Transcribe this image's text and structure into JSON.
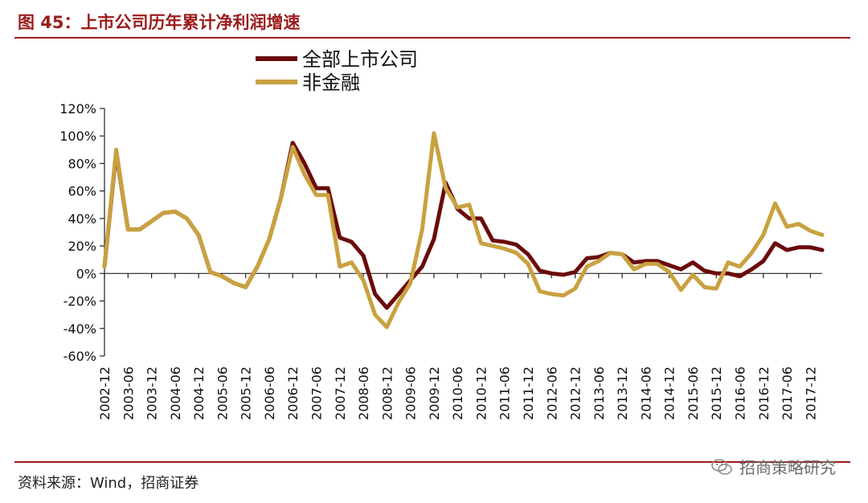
{
  "title": "图 45：上市公司历年累计净利润增速",
  "source": "资料来源：Wind，招商证券",
  "watermark": "招商策略研究",
  "colors": {
    "accent": "#9c1c1c",
    "series_all": "#6b0a0a",
    "series_nonfin": "#c9a13f"
  },
  "chart_data": {
    "type": "line",
    "title": "",
    "xlabel": "",
    "ylabel": "",
    "ylim": [
      -60,
      120
    ],
    "yticks": [
      -60,
      -40,
      -20,
      0,
      20,
      40,
      60,
      80,
      100,
      120
    ],
    "ytick_labels": [
      "-60%",
      "-40%",
      "-20%",
      "0%",
      "20%",
      "40%",
      "60%",
      "80%",
      "100%",
      "120%"
    ],
    "grid": false,
    "legend": "top-left",
    "x_labels": [
      "2002-12",
      "2003-06",
      "2003-12",
      "2004-06",
      "2004-12",
      "2005-06",
      "2005-12",
      "2006-06",
      "2006-12",
      "2007-06",
      "2007-12",
      "2008-06",
      "2008-12",
      "2009-06",
      "2009-12",
      "2010-06",
      "2010-12",
      "2011-06",
      "2011-12",
      "2012-06",
      "2012-12",
      "2013-06",
      "2013-12",
      "2014-06",
      "2014-12",
      "2015-06",
      "2015-12",
      "2016-06",
      "2016-12",
      "2017-06",
      "2017-12"
    ],
    "x": [
      "2002-12",
      "2003-03",
      "2003-06",
      "2003-09",
      "2003-12",
      "2004-03",
      "2004-06",
      "2004-09",
      "2004-12",
      "2005-03",
      "2005-06",
      "2005-09",
      "2005-12",
      "2006-03",
      "2006-06",
      "2006-09",
      "2006-12",
      "2007-03",
      "2007-06",
      "2007-09",
      "2007-12",
      "2008-03",
      "2008-06",
      "2008-09",
      "2008-12",
      "2009-03",
      "2009-06",
      "2009-09",
      "2009-12",
      "2010-03",
      "2010-06",
      "2010-09",
      "2010-12",
      "2011-03",
      "2011-06",
      "2011-09",
      "2011-12",
      "2012-03",
      "2012-06",
      "2012-09",
      "2012-12",
      "2013-03",
      "2013-06",
      "2013-09",
      "2013-12",
      "2014-03",
      "2014-06",
      "2014-09",
      "2014-12",
      "2015-03",
      "2015-06",
      "2015-09",
      "2015-12",
      "2016-03",
      "2016-06",
      "2016-09",
      "2016-12",
      "2017-03",
      "2017-06",
      "2017-09",
      "2017-12",
      "2018-03"
    ],
    "series": [
      {
        "name": "全部上市公司",
        "values": [
          5,
          88,
          32,
          32,
          38,
          44,
          45,
          40,
          28,
          1,
          -2,
          -7,
          -10,
          5,
          25,
          55,
          95,
          80,
          62,
          62,
          26,
          23,
          13,
          -15,
          -25,
          -15,
          -5,
          5,
          25,
          66,
          47,
          40,
          40,
          24,
          23,
          21,
          14,
          2,
          0,
          -1,
          1,
          11,
          12,
          15,
          14,
          8,
          9,
          9,
          6,
          3,
          8,
          2,
          0,
          0,
          -2,
          3,
          9,
          22,
          17,
          19,
          19,
          17
        ]
      },
      {
        "name": "非金融",
        "values": [
          5,
          90,
          32,
          32,
          38,
          44,
          45,
          40,
          28,
          1,
          -2,
          -7,
          -10,
          5,
          25,
          55,
          92,
          72,
          57,
          57,
          5,
          8,
          -5,
          -30,
          -39,
          -21,
          -7,
          32,
          102,
          62,
          48,
          50,
          22,
          20,
          18,
          15,
          7,
          -13,
          -15,
          -16,
          -11,
          5,
          9,
          15,
          14,
          3,
          7,
          7,
          1,
          -12,
          -1,
          -10,
          -11,
          8,
          5,
          15,
          28,
          51,
          34,
          36,
          31,
          28
        ]
      }
    ]
  }
}
